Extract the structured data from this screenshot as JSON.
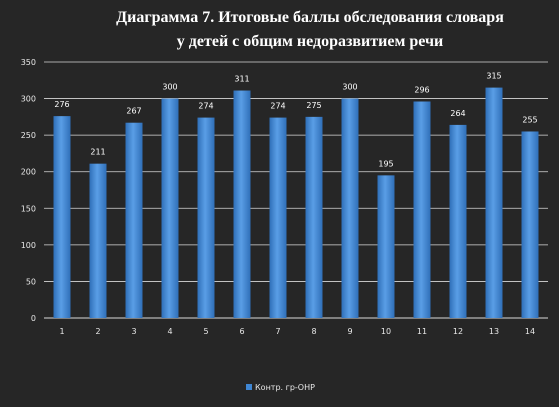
{
  "chart_data": {
    "type": "bar",
    "title_line1": "Диаграмма 7. Итоговые баллы обследования словаря",
    "title_line2": "у детей с общим недоразвитием речи",
    "categories": [
      "1",
      "2",
      "3",
      "4",
      "5",
      "6",
      "7",
      "8",
      "9",
      "10",
      "11",
      "12",
      "13",
      "14"
    ],
    "series": [
      {
        "name": "Контр. гр-ОНР",
        "values": [
          276,
          211,
          267,
          300,
          274,
          311,
          274,
          275,
          300,
          195,
          296,
          264,
          315,
          255
        ],
        "data_labels": [
          "276",
          "211",
          "267",
          "300",
          "274",
          "311",
          "274",
          "275",
          "300",
          "195",
          "296",
          "264",
          "315",
          "255"
        ]
      }
    ],
    "y_ticks": [
      "0",
      "50",
      "100",
      "150",
      "200",
      "250",
      "300",
      "350"
    ],
    "ylim": [
      0,
      350
    ],
    "grid": true,
    "legend_position": "bottom",
    "colors": {
      "background": "#262626",
      "bar": "#3f86d3",
      "bar_light": "#74aee8",
      "grid": "#d9d9d9",
      "text": "#e8e8e8"
    }
  }
}
